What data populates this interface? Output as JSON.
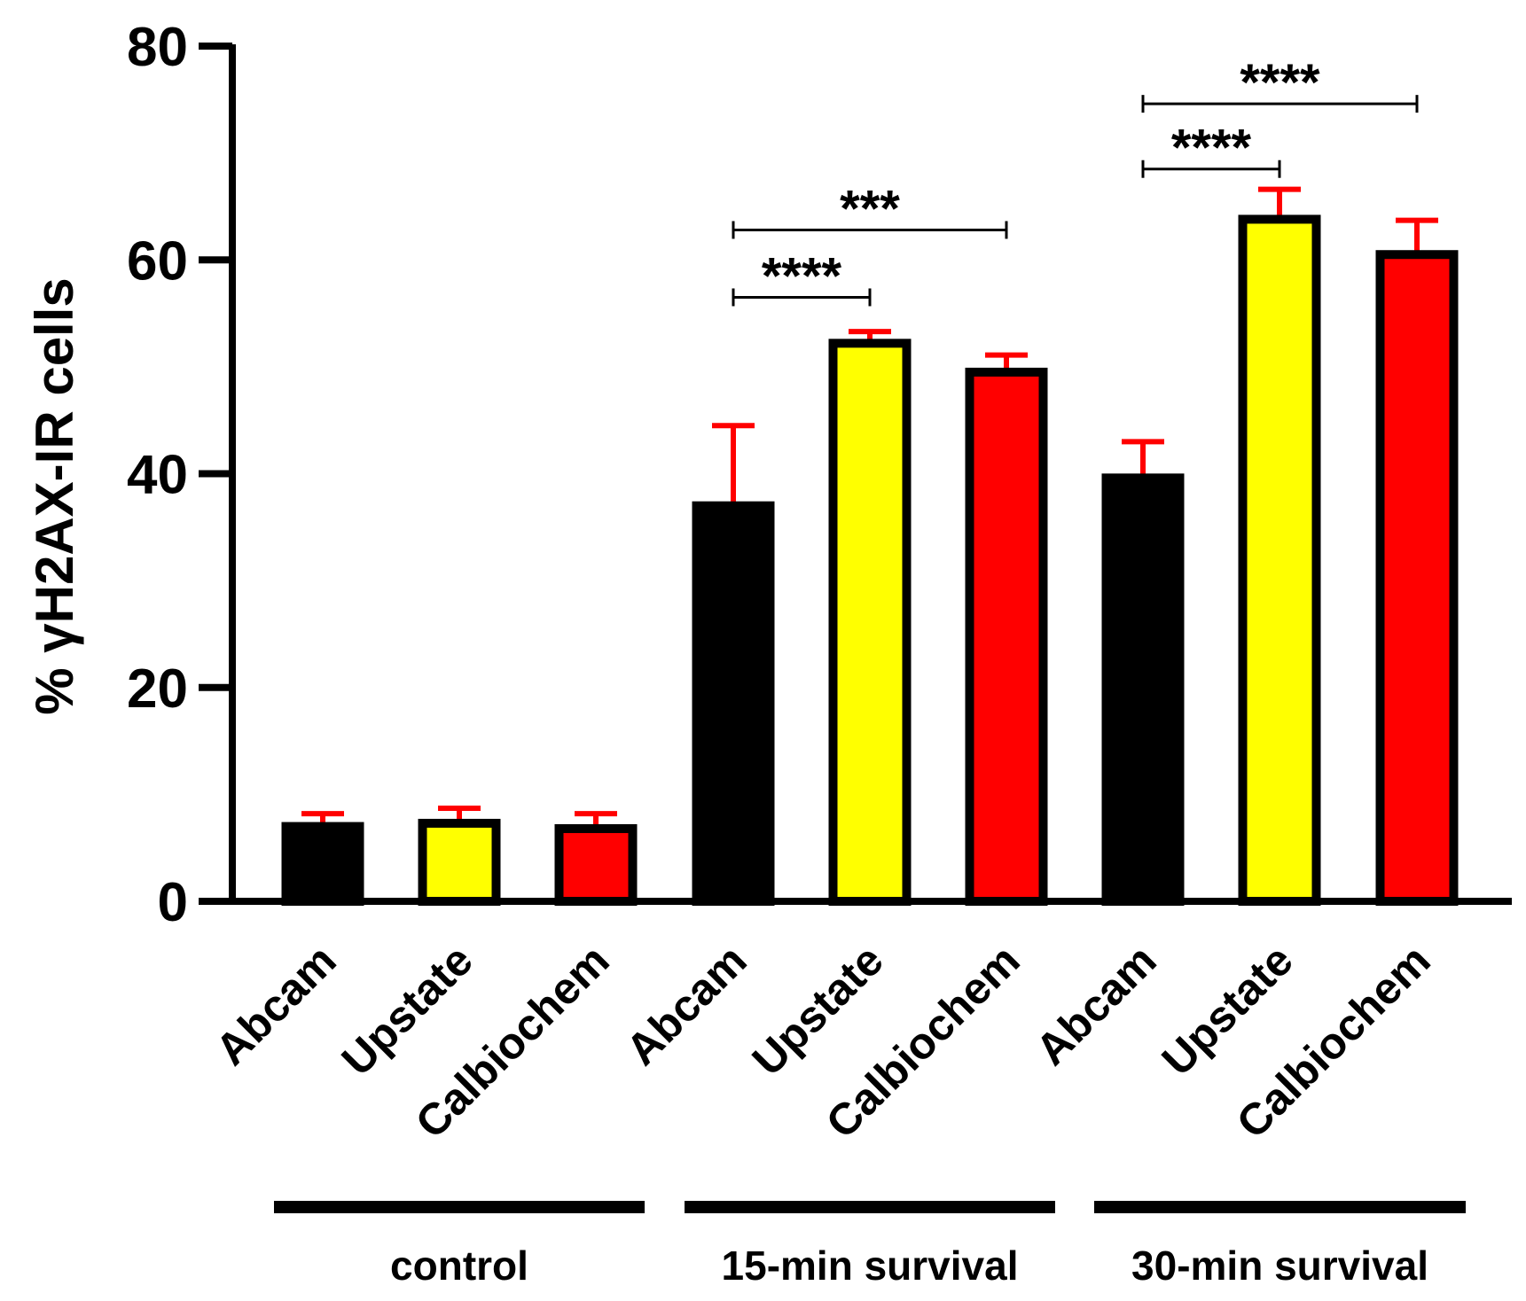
{
  "chart_data": {
    "type": "bar",
    "title": "",
    "xlabel": "",
    "ylabel": "% γH2AX-IR cells",
    "ylim": [
      0,
      80
    ],
    "yticks": [
      0,
      20,
      40,
      60,
      80
    ],
    "grid": false,
    "bars": [
      {
        "label": "Abcam",
        "group": "control",
        "value": 7,
        "error": 1.2,
        "color": "#000000"
      },
      {
        "label": "Upstate",
        "group": "control",
        "value": 7.3,
        "error": 1.4,
        "color": "#ffff00"
      },
      {
        "label": "Calbiochem",
        "group": "control",
        "value": 6.8,
        "error": 1.4,
        "color": "#ff0000"
      },
      {
        "label": "Abcam",
        "group": "15-min survival",
        "value": 37,
        "error": 7.5,
        "color": "#000000"
      },
      {
        "label": "Upstate",
        "group": "15-min survival",
        "value": 52.2,
        "error": 1.1,
        "color": "#ffff00"
      },
      {
        "label": "Calbiochem",
        "group": "15-min survival",
        "value": 49.5,
        "error": 1.6,
        "color": "#ff0000"
      },
      {
        "label": "Abcam",
        "group": "30-min survival",
        "value": 39.6,
        "error": 3.4,
        "color": "#000000"
      },
      {
        "label": "Upstate",
        "group": "30-min survival",
        "value": 63.8,
        "error": 2.8,
        "color": "#ffff00"
      },
      {
        "label": "Calbiochem",
        "group": "30-min survival",
        "value": 60.5,
        "error": 3.2,
        "color": "#ff0000"
      }
    ],
    "groups": [
      "control",
      "15-min survival",
      "30-min survival"
    ],
    "significance": [
      {
        "from": 3,
        "to": 4,
        "y": 56.5,
        "label": "****"
      },
      {
        "from": 3,
        "to": 5,
        "y": 62.8,
        "label": "***"
      },
      {
        "from": 6,
        "to": 7,
        "y": 68.5,
        "label": "****"
      },
      {
        "from": 6,
        "to": 8,
        "y": 74.6,
        "label": "****"
      }
    ],
    "error_bar_color": "#ff0000"
  }
}
